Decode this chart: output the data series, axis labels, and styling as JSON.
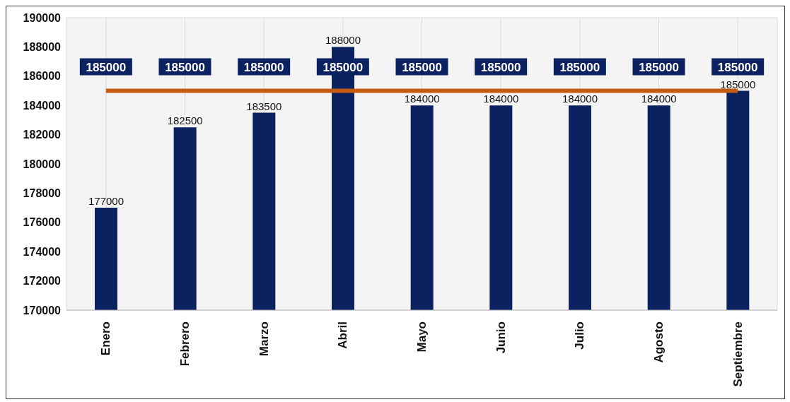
{
  "chart_data": {
    "type": "bar",
    "categories": [
      "Enero",
      "Febrero",
      "Marzo",
      "Abril",
      "Mayo",
      "Junio",
      "Julio",
      "Agosto",
      "Septiembre"
    ],
    "series": [
      {
        "color": "#0b2160",
        "values": [
          177000,
          182500,
          183500,
          188000,
          184000,
          184000,
          184000,
          184000,
          185000
        ]
      },
      {
        "type": "line",
        "color": "#c55a11",
        "values": [
          185000,
          185000,
          185000,
          185000,
          185000,
          185000,
          185000,
          185000,
          185000
        ]
      }
    ],
    "ylim": [
      170000,
      190000
    ],
    "yticks": [
      170000,
      172000,
      174000,
      176000,
      178000,
      180000,
      182000,
      184000,
      186000,
      188000,
      190000
    ],
    "grid": true,
    "data_labels": true,
    "marker": "none",
    "line_style": "solid"
  }
}
